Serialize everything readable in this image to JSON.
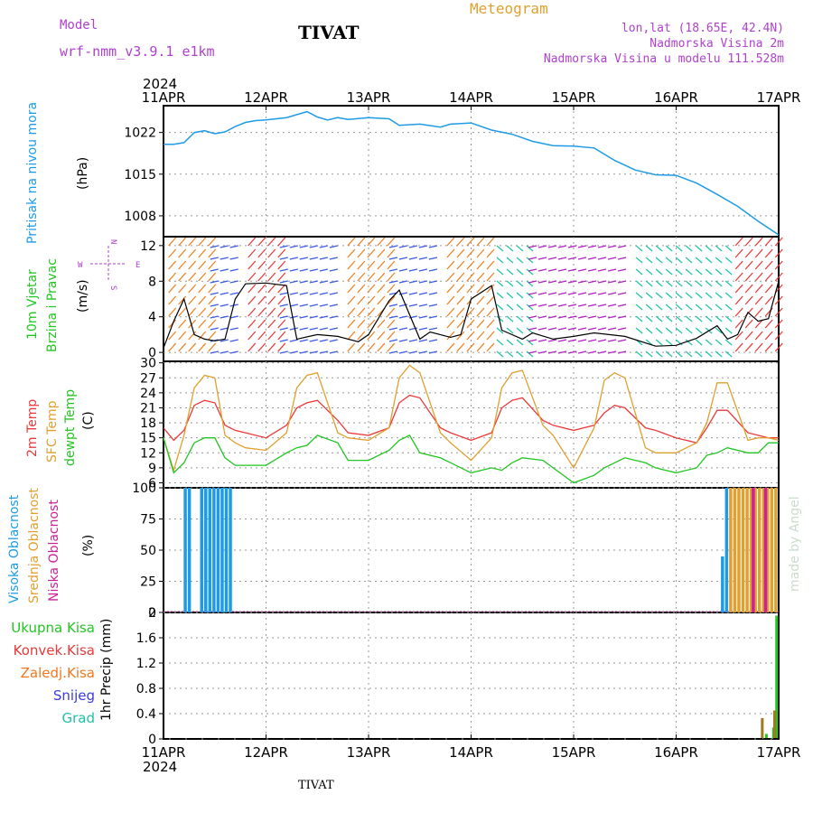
{
  "header": {
    "model_label": "Model",
    "model_value": "wrf-nmm_v3.9.1  e1km",
    "station": "TIVAT",
    "product": "Meteogram",
    "lonlat": "lon,lat (18.65E, 42.4N)",
    "elevation": "Nadmorska Visina 2m",
    "model_elevation": "Nadmorska Visina u modelu 111.528m"
  },
  "footer": {
    "station": "TIVAT",
    "watermark": "made by Angel"
  },
  "year": "2024",
  "x_ticks": [
    "11APR",
    "12APR",
    "13APR",
    "14APR",
    "15APR",
    "16APR",
    "17APR"
  ],
  "colors": {
    "pressure": "#1e9be6",
    "t2m": "#e83a3a",
    "tsfc": "#e0a030",
    "dewpt": "#22c522",
    "cloud_high": "#1e9be6",
    "cloud_mid": "#e0a030",
    "cloud_low": "#cc2299",
    "precip_total": "#22c522",
    "precip_conv": "#e83a3a",
    "precip_frz": "#f07820",
    "precip_snow": "#3a3ae0",
    "precip_graup": "#20c0a8",
    "wind_labels": "#b040d0"
  },
  "chart_data": [
    {
      "type": "line",
      "panel": "pressure",
      "ylabel_color_text": "Pritisak na nivou mora",
      "unit": "(hPa)",
      "yticks": [
        "1022",
        "1015",
        "1008"
      ],
      "ylim": [
        1004.5,
        1026.5
      ],
      "x_days": [
        0,
        0.1,
        0.2,
        0.3,
        0.4,
        0.5,
        0.6,
        0.7,
        0.8,
        0.9,
        1,
        1.2,
        1.4,
        1.5,
        1.6,
        1.7,
        1.8,
        2,
        2.2,
        2.3,
        2.5,
        2.7,
        2.8,
        3,
        3.2,
        3.4,
        3.6,
        3.8,
        4,
        4.2,
        4.4,
        4.6,
        4.8,
        5,
        5.2,
        5.4,
        5.6,
        5.8,
        6
      ],
      "values": [
        1020,
        1020,
        1020.3,
        1022,
        1022.3,
        1021.8,
        1022.1,
        1023,
        1023.7,
        1024,
        1024.1,
        1024.5,
        1025.5,
        1024.6,
        1024.1,
        1024.5,
        1024.2,
        1024.5,
        1024.3,
        1023.2,
        1023.4,
        1022.9,
        1023.4,
        1023.6,
        1022.4,
        1021.7,
        1020.5,
        1019.8,
        1019.7,
        1019.4,
        1017.3,
        1015.7,
        1014.9,
        1014.8,
        1013.5,
        1011.6,
        1009.6,
        1007.1,
        1004.8
      ]
    },
    {
      "type": "line",
      "panel": "wind",
      "ylabel_lines": [
        "10m Vjetar",
        "Brzina i Pravac"
      ],
      "unit": "(m/s)",
      "compass": {
        "n": "N",
        "w": "W",
        "e": "E",
        "s": "S"
      },
      "yticks": [
        "12",
        "8",
        "4",
        "0"
      ],
      "ylim": [
        -1,
        13
      ],
      "x_days": [
        0,
        0.1,
        0.2,
        0.3,
        0.4,
        0.5,
        0.6,
        0.7,
        0.8,
        1,
        1.2,
        1.3,
        1.5,
        1.7,
        1.9,
        2,
        2.2,
        2.3,
        2.5,
        2.6,
        2.8,
        2.9,
        3,
        3.2,
        3.3,
        3.5,
        3.6,
        3.8,
        4,
        4.2,
        4.5,
        4.8,
        5,
        5.2,
        5.4,
        5.5,
        5.6,
        5.7,
        5.8,
        5.9,
        6
      ],
      "values": [
        0.5,
        3.5,
        6,
        2,
        1.5,
        1.3,
        1.5,
        6,
        7.7,
        7.8,
        7.5,
        1.5,
        2,
        1.8,
        1.2,
        2,
        5.8,
        7,
        1.5,
        2.3,
        1.7,
        2,
        6,
        7.5,
        2.5,
        1.5,
        2.2,
        1.5,
        1.8,
        2.2,
        1.8,
        0.7,
        0.8,
        1.6,
        3,
        1.5,
        2,
        4.5,
        3.5,
        3.8,
        8
      ]
    },
    {
      "type": "line",
      "panel": "temperature",
      "ylabel_lines": [
        "2m Temp",
        "SFC Temp",
        "dewpt Temp"
      ],
      "unit": "(C)",
      "yticks": [
        "30",
        "27",
        "24",
        "21",
        "18",
        "15",
        "12",
        "9",
        "6"
      ],
      "ylim": [
        5,
        30.3
      ],
      "x": [
        0,
        0.1,
        0.2,
        0.3,
        0.4,
        0.5,
        0.6,
        0.7,
        0.8,
        1,
        1.2,
        1.3,
        1.4,
        1.5,
        1.7,
        1.8,
        2,
        2.2,
        2.3,
        2.4,
        2.5,
        2.7,
        2.8,
        3,
        3.2,
        3.3,
        3.4,
        3.5,
        3.7,
        3.8,
        4,
        4.2,
        4.3,
        4.4,
        4.5,
        4.7,
        4.8,
        5,
        5.2,
        5.3,
        5.4,
        5.5,
        5.7,
        5.8,
        5.9,
        6
      ],
      "series": [
        {
          "name": "2m Temp",
          "values": [
            17,
            14.5,
            16.5,
            21.5,
            22.5,
            22,
            17.5,
            16.5,
            16,
            15,
            17.5,
            21,
            22,
            22.5,
            18.5,
            16,
            15.5,
            17,
            22,
            23.5,
            23,
            17,
            16,
            14.5,
            16,
            21,
            22.5,
            23,
            18.5,
            17.5,
            16.5,
            17.5,
            20,
            21.5,
            21,
            17,
            16.5,
            15,
            14,
            17,
            20.5,
            20.5,
            16,
            15.5,
            15,
            15
          ]
        },
        {
          "name": "SFC Temp",
          "values": [
            15,
            8.5,
            15.5,
            25,
            27.5,
            27,
            15.5,
            14,
            13,
            12.5,
            16,
            25,
            27.5,
            28,
            16,
            15,
            14.5,
            17,
            27,
            29.5,
            28,
            16,
            14,
            10.5,
            15,
            25,
            28,
            28.5,
            17.5,
            15.5,
            9,
            17,
            26.5,
            28,
            27,
            13,
            12,
            12,
            14,
            18,
            26,
            26,
            14.5,
            15,
            15,
            14.5
          ]
        },
        {
          "name": "dewpt Temp",
          "values": [
            15,
            8,
            10,
            14,
            15,
            15,
            11,
            9.5,
            9.5,
            9.5,
            12,
            13,
            13.5,
            15.5,
            14,
            10.5,
            10.5,
            12.5,
            14.5,
            15.5,
            12,
            11,
            10,
            8,
            9,
            8.5,
            10,
            11,
            10.5,
            9,
            6,
            7.5,
            9,
            10,
            11,
            10,
            9,
            8,
            9,
            11.5,
            12,
            13,
            12,
            12,
            14,
            14
          ]
        }
      ]
    },
    {
      "type": "bar",
      "panel": "clouds",
      "ylabel_lines": [
        "Visoka Oblacnost",
        "Srednja Oblacnost",
        "Niska Oblacnost"
      ],
      "unit": "(%)",
      "yticks": [
        "100",
        "75",
        "50",
        "25",
        "0"
      ],
      "ylim": [
        0,
        100
      ],
      "series": [
        {
          "name": "Visoka Oblacnost",
          "x_days": [
            0.21,
            0.25,
            0.37,
            0.41,
            0.45,
            0.49,
            0.53,
            0.57,
            0.61,
            0.65,
            5.45,
            5.49
          ],
          "values": [
            100,
            100,
            100,
            100,
            100,
            100,
            100,
            100,
            100,
            100,
            45,
            100
          ]
        },
        {
          "name": "Srednja Oblacnost",
          "x_days": [
            5.53,
            5.57,
            5.61,
            5.65,
            5.69,
            5.73,
            5.77,
            5.81,
            5.85,
            5.89,
            5.93,
            5.97
          ],
          "values": [
            100,
            100,
            100,
            100,
            100,
            100,
            100,
            100,
            100,
            100,
            100,
            100
          ]
        },
        {
          "name": "Niska Oblacnost",
          "x_days": [
            5.75,
            5.87
          ],
          "values": [
            100,
            100
          ]
        }
      ]
    },
    {
      "type": "bar",
      "panel": "precipitation",
      "ylabel": "1hr Precip (mm)",
      "legend": [
        "Ukupna Kisa",
        "Konvek.Kisa",
        "Zaledj.Kisa",
        "Snijeg",
        "Grad"
      ],
      "yticks": [
        "2",
        "1.6",
        "1.2",
        "0.8",
        "0.4",
        "0"
      ],
      "ylim": [
        0,
        2
      ],
      "series": [
        {
          "name": "Ukupna Kisa",
          "x_days": [
            5.88,
            5.95,
            5.98
          ],
          "values": [
            0.08,
            0.18,
            1.95
          ]
        },
        {
          "name": "Zaledj.Kisa",
          "x_days": [
            5.84,
            5.96
          ],
          "values": [
            0.33,
            0.45
          ]
        }
      ]
    }
  ]
}
